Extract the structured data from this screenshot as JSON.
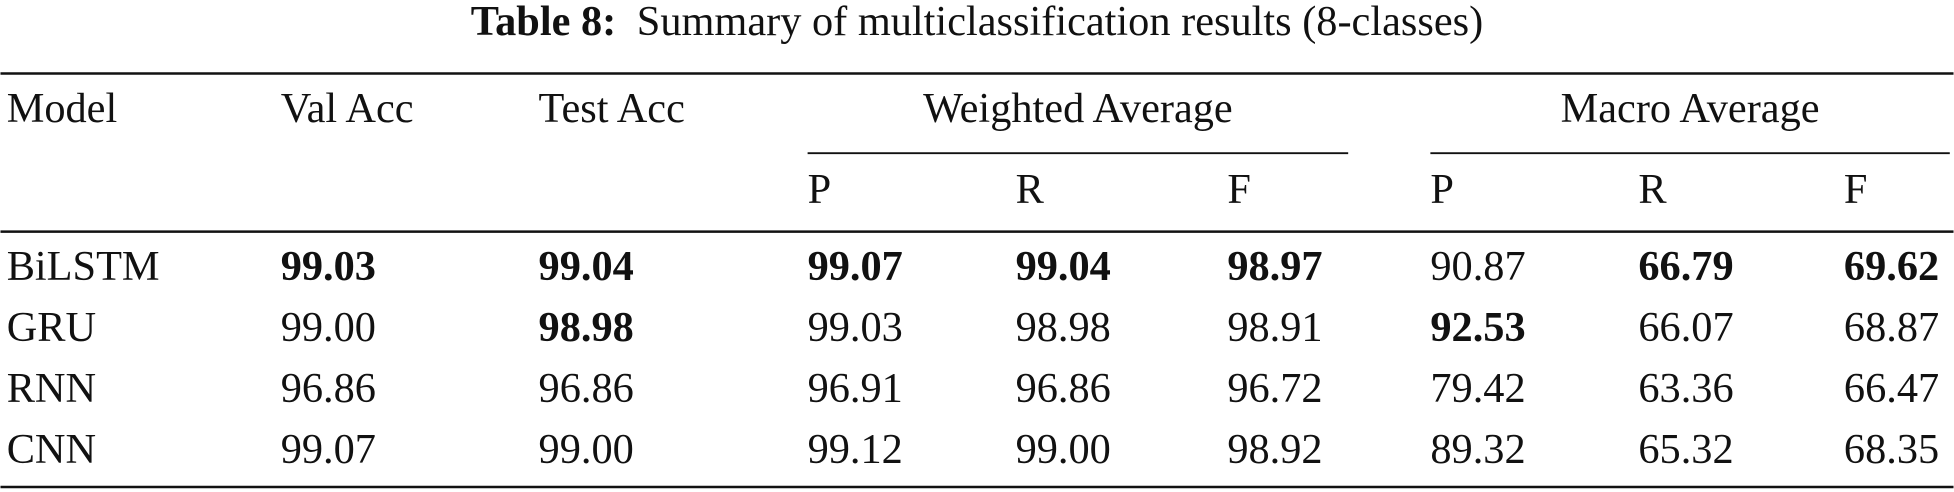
{
  "title": {
    "label": "Table 8:",
    "text": "Summary of multiclassification results (8-classes)"
  },
  "table": {
    "header": [
      "Model",
      "Val Acc",
      "Test Acc"
    ],
    "groups": [
      {
        "label": "Weighted Average",
        "sub": [
          "P",
          "R",
          "F"
        ]
      },
      {
        "label": "Macro Average",
        "sub": [
          "P",
          "R",
          "F"
        ]
      }
    ],
    "rows": [
      [
        "BiLSTM",
        "99.03",
        "99.04",
        "99.07",
        "99.04",
        "98.97",
        "90.87",
        "66.79",
        "69.62"
      ],
      [
        "GRU",
        "99.00",
        "98.98",
        "99.03",
        "98.98",
        "98.91",
        "92.53",
        "66.07",
        "68.87"
      ],
      [
        "RNN",
        "96.86",
        "96.86",
        "96.91",
        "96.86",
        "96.72",
        "79.42",
        "63.36",
        "66.47"
      ],
      [
        "CNN",
        "99.07",
        "99.00",
        "99.12",
        "99.00",
        "98.92",
        "89.32",
        "65.32",
        "68.35"
      ]
    ],
    "bold": [
      [
        1,
        2,
        3,
        4,
        5,
        7,
        8
      ],
      [
        2,
        6
      ],
      [],
      []
    ]
  }
}
